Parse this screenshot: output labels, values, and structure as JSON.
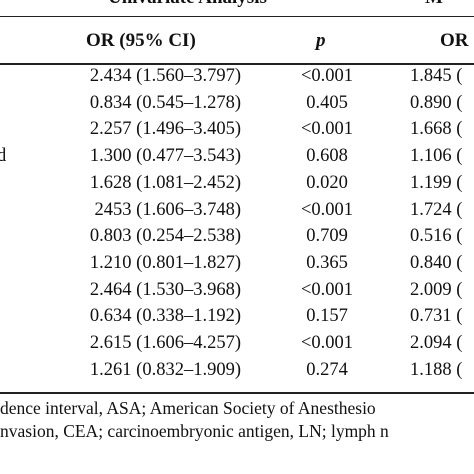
{
  "header": {
    "group_left": "Univariate Analysis",
    "group_right": "M",
    "col_or": "OR (95% CI)",
    "col_p": "p",
    "col_or2": "OR ("
  },
  "rows": [
    {
      "left": "",
      "or": "2.434 (1.560–3.797)",
      "p": "<0.001",
      "or2": "1.845 ("
    },
    {
      "left": "",
      "or": "0.834 (0.545–1.278)",
      "p": "0.405",
      "or2": "0.890 ("
    },
    {
      "left": "",
      "or": "2.257 (1.496–3.405)",
      "p": "<0.001",
      "or2": "1.668 ("
    },
    {
      "left": "d",
      "or": "1.300 (0.477–3.543)",
      "p": "0.608",
      "or2": "1.106 ("
    },
    {
      "left": "",
      "or": "1.628 (1.081–2.452)",
      "p": "0.020",
      "or2": "1.199 ("
    },
    {
      "left": "",
      "or": "2453 (1.606–3.748)",
      "p": "<0.001",
      "or2": "1.724 ("
    },
    {
      "left": "",
      "or": "0.803 (0.254–2.538)",
      "p": "0.709",
      "or2": "0.516 ("
    },
    {
      "left": "",
      "or": "1.210 (0.801–1.827)",
      "p": "0.365",
      "or2": "0.840 ("
    },
    {
      "left": "",
      "or": "2.464 (1.530–3.968)",
      "p": "<0.001",
      "or2": "2.009 ("
    },
    {
      "left": "",
      "or": "0.634 (0.338–1.192)",
      "p": "0.157",
      "or2": "0.731 ("
    },
    {
      "left": "",
      "or": "2.615 (1.606–4.257)",
      "p": "<0.001",
      "or2": "2.094 ("
    },
    {
      "left": "",
      "or": "1.261 (0.832–1.909)",
      "p": "0.274",
      "or2": "1.188 ("
    }
  ],
  "footnote": {
    "line1": "dence interval, ASA; American Society of Anesthesio",
    "line2": "nvasion, CEA; carcinoembryonic antigen, LN; lymph n"
  }
}
